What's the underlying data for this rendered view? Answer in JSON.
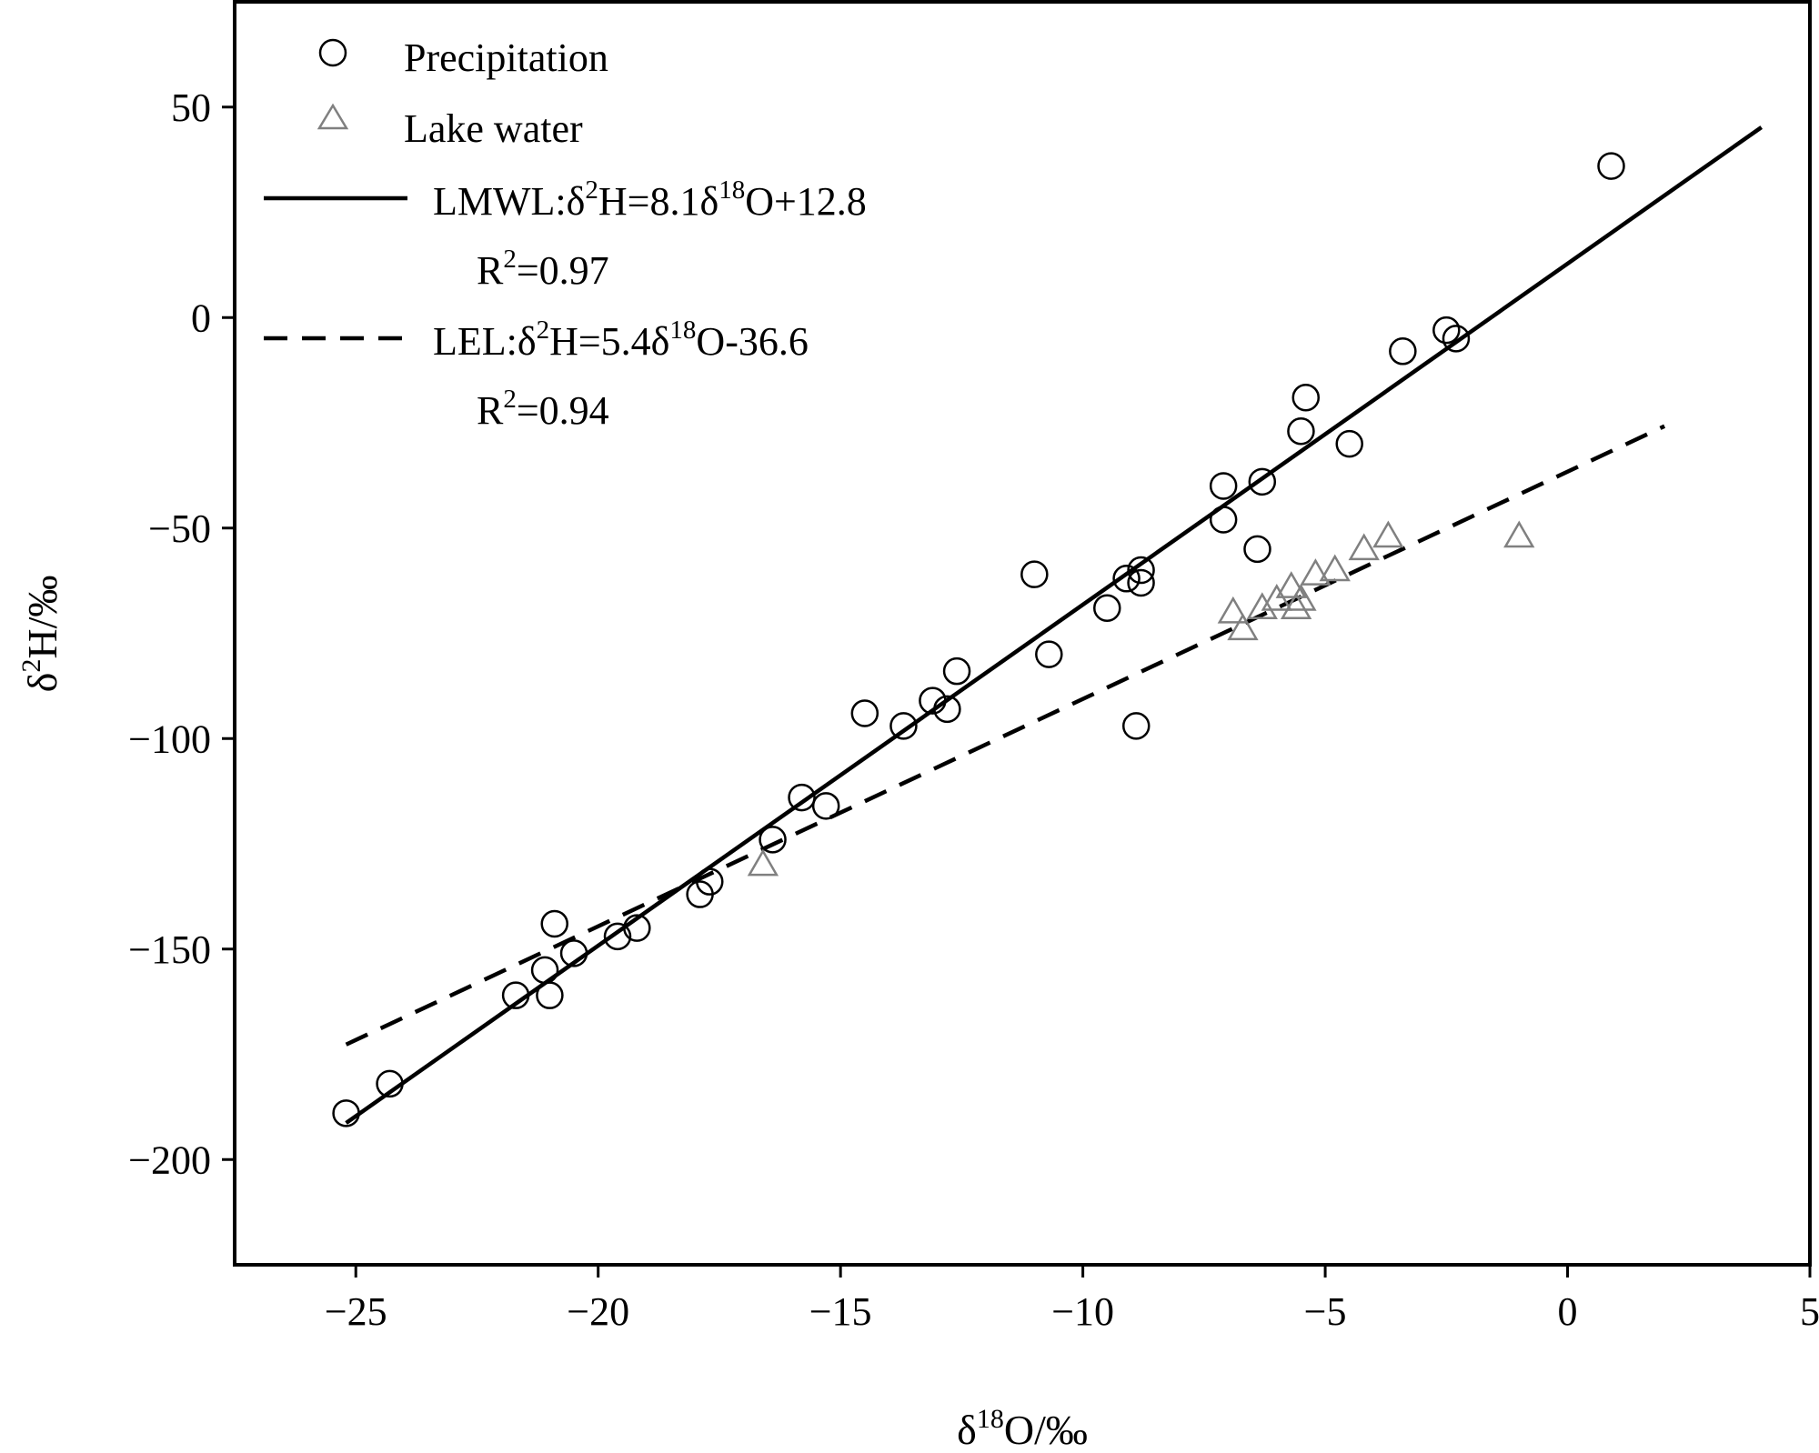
{
  "chart_data": {
    "type": "scatter",
    "xlabel": "δ18O/‰",
    "xlabel_parts": {
      "base": "δ",
      "sup": "18",
      "rest": "O/‰"
    },
    "ylabel": "δ2H/‰",
    "ylabel_parts": {
      "base": "δ",
      "sup": "2",
      "rest": "H/‰"
    },
    "xlim": [
      -27.5,
      5
    ],
    "ylim": [
      -225,
      75
    ],
    "x_ticks": [
      -25,
      -20,
      -15,
      -10,
      -5,
      0,
      5
    ],
    "y_ticks": [
      50,
      0,
      -50,
      -100,
      -150,
      -200
    ],
    "x_tick_labels": [
      "−25",
      "−20",
      "−15",
      "−10",
      "−5",
      "0",
      "5"
    ],
    "y_tick_labels": [
      "50",
      "0",
      "−50",
      "−100",
      "−150",
      "−200"
    ],
    "grid": false,
    "legend_position": "top-left",
    "series": [
      {
        "name": "Precipitation",
        "marker": "circle",
        "color": "#000000",
        "points": [
          [
            -25.2,
            -189
          ],
          [
            -24.3,
            -182
          ],
          [
            -21.7,
            -161
          ],
          [
            -21.0,
            -161
          ],
          [
            -21.1,
            -155
          ],
          [
            -20.5,
            -151
          ],
          [
            -20.9,
            -144
          ],
          [
            -19.6,
            -147
          ],
          [
            -19.2,
            -145
          ],
          [
            -17.9,
            -137
          ],
          [
            -17.7,
            -134
          ],
          [
            -16.4,
            -124
          ],
          [
            -15.3,
            -116
          ],
          [
            -15.8,
            -114
          ],
          [
            -14.5,
            -94
          ],
          [
            -13.7,
            -97
          ],
          [
            -13.1,
            -91
          ],
          [
            -12.8,
            -93
          ],
          [
            -12.6,
            -84
          ],
          [
            -11.0,
            -61
          ],
          [
            -10.7,
            -80
          ],
          [
            -9.5,
            -69
          ],
          [
            -9.1,
            -62
          ],
          [
            -8.8,
            -63
          ],
          [
            -8.8,
            -60
          ],
          [
            -8.9,
            -97
          ],
          [
            -7.1,
            -48
          ],
          [
            -7.1,
            -40
          ],
          [
            -6.4,
            -55
          ],
          [
            -6.3,
            -39
          ],
          [
            -5.5,
            -27
          ],
          [
            -5.4,
            -19
          ],
          [
            -4.5,
            -30
          ],
          [
            -3.4,
            -8
          ],
          [
            -2.5,
            -3
          ],
          [
            -2.3,
            -5
          ],
          [
            0.9,
            36
          ]
        ]
      },
      {
        "name": "Lake water",
        "marker": "triangle",
        "color": "#808080",
        "points": [
          [
            -16.6,
            -130
          ],
          [
            -6.9,
            -70
          ],
          [
            -6.7,
            -74
          ],
          [
            -6.3,
            -69
          ],
          [
            -6.0,
            -67
          ],
          [
            -5.7,
            -64
          ],
          [
            -5.5,
            -67
          ],
          [
            -5.6,
            -69
          ],
          [
            -5.2,
            -61
          ],
          [
            -4.8,
            -60
          ],
          [
            -4.2,
            -55
          ],
          [
            -3.7,
            -52
          ],
          [
            -1.0,
            -52
          ]
        ]
      }
    ],
    "lines": [
      {
        "name": "LMWL",
        "style": "solid",
        "slope": 8.1,
        "intercept": 12.8,
        "x_range": [
          -25.2,
          4.0
        ],
        "equation_prefix": "LMWL:δ",
        "equation_parts": [
          "2",
          "H=8.1δ",
          "18",
          "O+12.8"
        ],
        "r2_base": "R",
        "r2_sup": "2",
        "r2_value": "=0.97"
      },
      {
        "name": "LEL",
        "style": "dashed",
        "slope": 5.4,
        "intercept": -36.6,
        "x_range": [
          -25.2,
          2.0
        ],
        "equation_prefix": "LEL:δ",
        "equation_parts": [
          "2",
          "H=5.4δ",
          "18",
          "O-36.6"
        ],
        "r2_base": "R",
        "r2_sup": "2",
        "r2_value": "=0.94"
      }
    ]
  }
}
